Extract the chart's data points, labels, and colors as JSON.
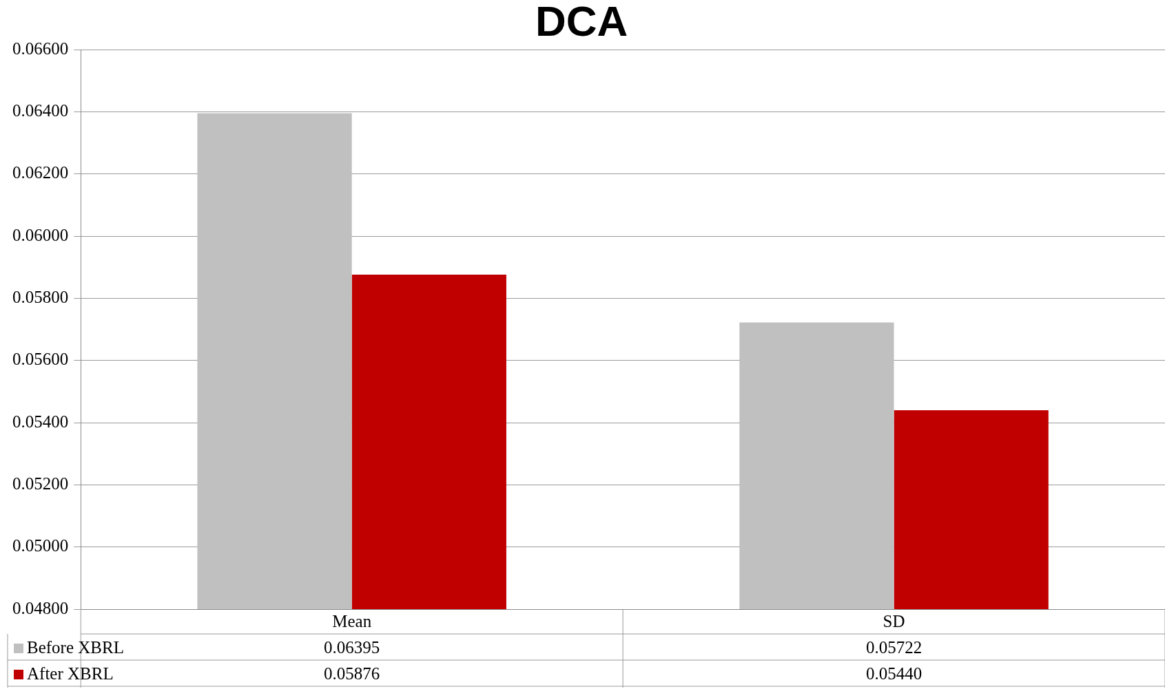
{
  "chart_data": {
    "type": "bar",
    "title": "DCA",
    "categories": [
      "Mean",
      "SD"
    ],
    "series": [
      {
        "name": "Before XBRL",
        "color": "#c0c0c0",
        "values": [
          0.06395,
          0.05722
        ],
        "value_labels": [
          "0.06395",
          "0.05722"
        ]
      },
      {
        "name": "After XBRL",
        "color": "#c00000",
        "values": [
          0.05876,
          0.0544
        ],
        "value_labels": [
          "0.05876",
          "0.05440"
        ]
      }
    ],
    "ylim": [
      0.048,
      0.066
    ],
    "yticks": [
      {
        "value": 0.048,
        "label": "0.04800"
      },
      {
        "value": 0.05,
        "label": "0.05000"
      },
      {
        "value": 0.052,
        "label": "0.05200"
      },
      {
        "value": 0.054,
        "label": "0.05400"
      },
      {
        "value": 0.056,
        "label": "0.05600"
      },
      {
        "value": 0.058,
        "label": "0.05800"
      },
      {
        "value": 0.06,
        "label": "0.06000"
      },
      {
        "value": 0.062,
        "label": "0.06200"
      },
      {
        "value": 0.064,
        "label": "0.06400"
      },
      {
        "value": 0.066,
        "label": "0.06600"
      }
    ],
    "grid": "y",
    "legend": "bottom"
  }
}
